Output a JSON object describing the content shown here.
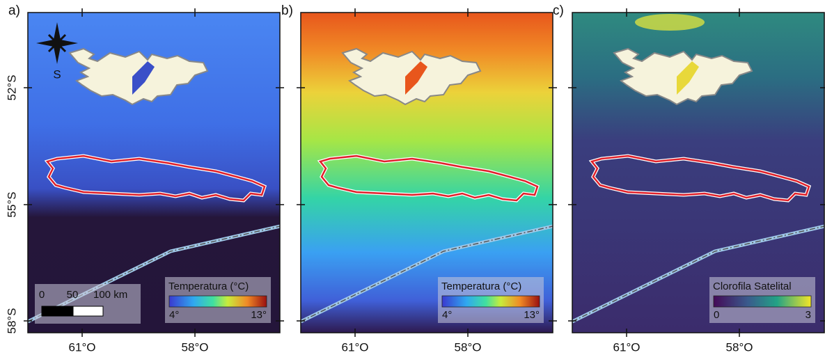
{
  "panels": [
    {
      "label": "a)",
      "legend": {
        "title": "Temperatura (°C)",
        "min": "4°",
        "max": "13°"
      }
    },
    {
      "label": "b)",
      "legend": {
        "title": "Temperatura (°C)",
        "min": "4°",
        "max": "13°"
      }
    },
    {
      "label": "c)",
      "legend": {
        "title": "Clorofila Satelital",
        "min": "0",
        "max": "3"
      }
    }
  ],
  "y_labels": [
    "52°S",
    "55°S",
    "58°S"
  ],
  "x_labels": [
    "61°O",
    "58°O"
  ],
  "compass": "S",
  "scale_bar": [
    "0",
    "50",
    "100 km"
  ]
}
